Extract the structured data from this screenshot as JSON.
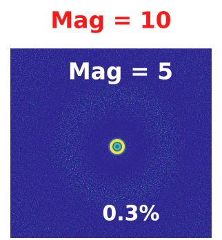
{
  "title": "Mag = 10",
  "panel": {
    "label": "Mag = 5",
    "annotation": "0.3%"
  }
}
